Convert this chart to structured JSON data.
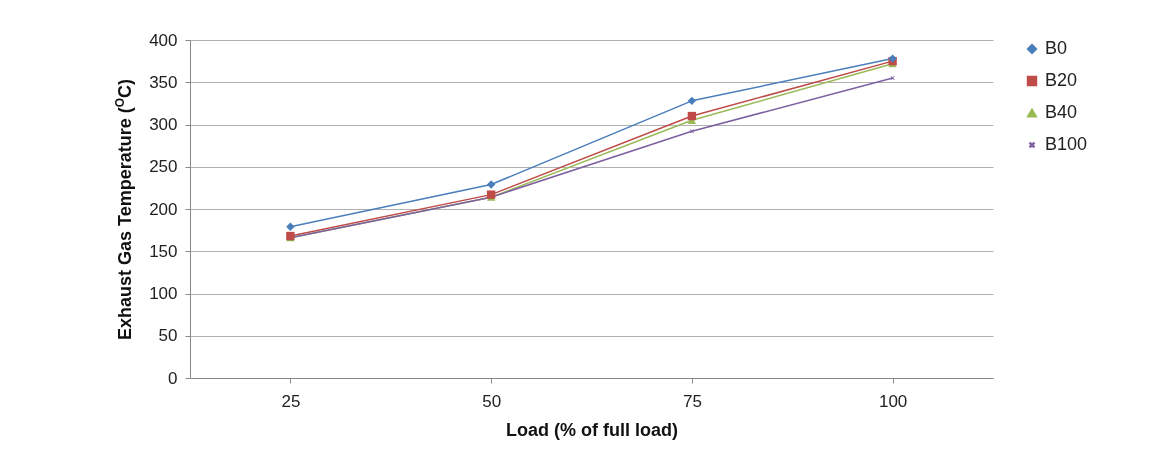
{
  "chart_data": {
    "type": "line",
    "xlabel": "Load (% of full load)",
    "ylabel": "Exhaust Gas Temperature  ($^{O}$C)",
    "categories": [
      "25",
      "50",
      "75",
      "100"
    ],
    "series": [
      {
        "name": "B0",
        "color": "#4a7ebb",
        "marker": "diamond",
        "values": [
          179,
          229,
          328,
          378
        ]
      },
      {
        "name": "B20",
        "color": "#be4b48",
        "marker": "square",
        "values": [
          168,
          217,
          310,
          375
        ]
      },
      {
        "name": "B40",
        "color": "#98b954",
        "marker": "triangle",
        "values": [
          166,
          214,
          305,
          372
        ]
      },
      {
        "name": "B100",
        "color": "#7d60a0",
        "marker": "cross",
        "values": [
          166,
          214,
          292,
          355
        ]
      }
    ],
    "ylim": [
      0,
      400
    ],
    "yticks": [
      0,
      50,
      100,
      150,
      200,
      250,
      300,
      350,
      400
    ],
    "grid": "y",
    "legend": "right",
    "line_style": "solid"
  }
}
